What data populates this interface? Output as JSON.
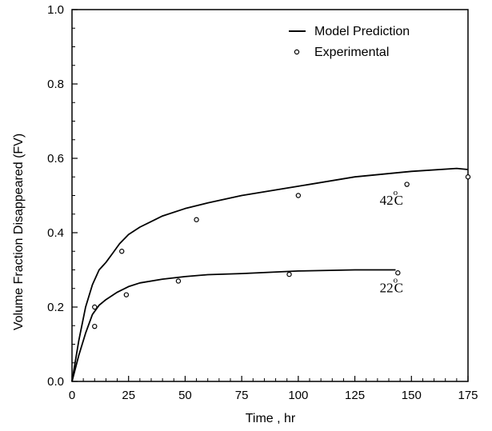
{
  "chart_data": {
    "type": "line",
    "xlabel": "Time , hr",
    "ylabel": "Volume Fraction Disappeared (FV)",
    "xlim": [
      0,
      175
    ],
    "ylim": [
      0.0,
      1.0
    ],
    "x_ticks": [
      "0",
      "25",
      "50",
      "75",
      "100",
      "125",
      "150",
      "175"
    ],
    "y_ticks": [
      "0.0",
      "0.2",
      "0.4",
      "0.6",
      "0.8",
      "1.0"
    ],
    "grid": false,
    "legend": {
      "position": "top-right",
      "entries": [
        {
          "label": "Model Prediction",
          "marker": "line"
        },
        {
          "label": "Experimental",
          "marker": "open-circle"
        }
      ]
    },
    "series": [
      {
        "kind": "model",
        "x": [
          0,
          3,
          6,
          9,
          12,
          15,
          18,
          21,
          25,
          30,
          35,
          40,
          50,
          60,
          75,
          100,
          125,
          150,
          170,
          175
        ],
        "y": [
          0.0,
          0.11,
          0.2,
          0.26,
          0.3,
          0.32,
          0.345,
          0.37,
          0.395,
          0.415,
          0.43,
          0.445,
          0.465,
          0.48,
          0.5,
          0.525,
          0.55,
          0.565,
          0.573,
          0.57
        ]
      },
      {
        "kind": "model",
        "x": [
          0,
          3,
          6,
          9,
          12,
          15,
          20,
          25,
          30,
          40,
          50,
          60,
          75,
          100,
          125,
          143
        ],
        "y": [
          0.0,
          0.07,
          0.13,
          0.18,
          0.205,
          0.22,
          0.24,
          0.255,
          0.265,
          0.275,
          0.282,
          0.287,
          0.29,
          0.297,
          0.3,
          0.3
        ]
      },
      {
        "kind": "experimental",
        "x": [
          10,
          22,
          55,
          100,
          148,
          175
        ],
        "y": [
          0.2,
          0.35,
          0.435,
          0.5,
          0.53,
          0.55
        ]
      },
      {
        "kind": "experimental",
        "x": [
          10,
          24,
          47,
          96,
          144
        ],
        "y": [
          0.148,
          0.233,
          0.27,
          0.288,
          0.292
        ]
      }
    ],
    "annotations": [
      {
        "text": "42",
        "degree": "o",
        "unit": "C",
        "x": 136,
        "y": 0.475
      },
      {
        "text": "22",
        "degree": "o",
        "unit": "C",
        "x": 136,
        "y": 0.24
      }
    ]
  }
}
